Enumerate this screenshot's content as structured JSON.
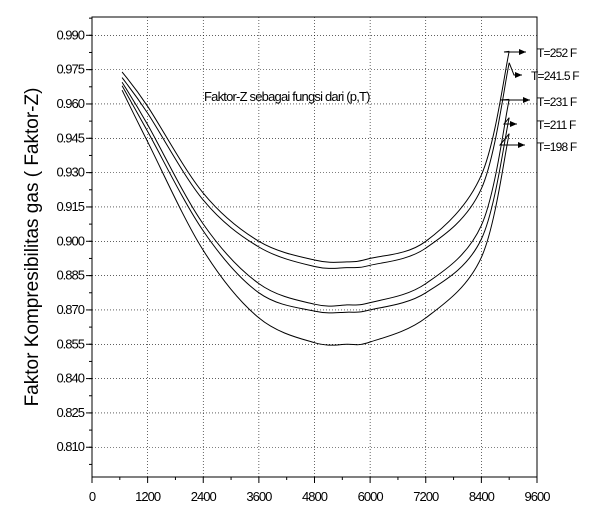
{
  "chart_data": {
    "type": "line",
    "title": "",
    "annotation": "Faktor-Z sebagai fungsi dari (p,T)",
    "xlabel": "",
    "ylabel": "Faktor Kompresibilitas gas ( Faktor-Z)",
    "xlim": [
      0,
      9600
    ],
    "ylim": [
      0.797,
      0.998
    ],
    "x_ticks": [
      0,
      1200,
      2400,
      3600,
      4800,
      6000,
      7200,
      8400,
      9600
    ],
    "x_tick_labels": [
      "0",
      "1200",
      "2400",
      "3600",
      "4800",
      "6000",
      "7200",
      "8400",
      "9600"
    ],
    "y_ticks": [
      0.81,
      0.825,
      0.84,
      0.855,
      0.87,
      0.885,
      0.9,
      0.915,
      0.93,
      0.945,
      0.96,
      0.975,
      0.99
    ],
    "y_tick_labels": [
      "0.810",
      "0.825",
      "0.840",
      "0.855",
      "0.870",
      "0.885",
      "0.900",
      "0.915",
      "0.930",
      "0.945",
      "0.960",
      "0.975",
      "0.990"
    ],
    "grid": true,
    "series": [
      {
        "name": "T=252 F",
        "x": [
          650,
          1200,
          2400,
          3600,
          4800,
          5500,
          6000,
          7200,
          8400,
          9000
        ],
        "y": [
          0.974,
          0.959,
          0.921,
          0.9,
          0.8918,
          0.891,
          0.8925,
          0.9,
          0.929,
          0.983
        ]
      },
      {
        "name": "T=241.5 F",
        "x": [
          650,
          1200,
          2400,
          3600,
          4800,
          5500,
          6000,
          7200,
          8400,
          9000
        ],
        "y": [
          0.9715,
          0.956,
          0.918,
          0.8975,
          0.889,
          0.8885,
          0.8895,
          0.897,
          0.923,
          0.978
        ]
      },
      {
        "name": "T=231 F",
        "x": [
          650,
          1200,
          2400,
          3600,
          4800,
          5500,
          6000,
          7200,
          8400,
          9000
        ],
        "y": [
          0.9695,
          0.951,
          0.9075,
          0.8815,
          0.8725,
          0.8722,
          0.8732,
          0.8815,
          0.907,
          0.962
        ]
      },
      {
        "name": "T=211 F",
        "x": [
          650,
          1200,
          2400,
          3600,
          4800,
          5500,
          6000,
          7200,
          8400,
          9000
        ],
        "y": [
          0.968,
          0.948,
          0.9045,
          0.8775,
          0.8695,
          0.869,
          0.87,
          0.8775,
          0.901,
          0.954
        ]
      },
      {
        "name": "T=198 F",
        "x": [
          650,
          1200,
          2400,
          3600,
          4800,
          5500,
          6000,
          7200,
          8400,
          9000
        ],
        "y": [
          0.966,
          0.9435,
          0.896,
          0.8665,
          0.8557,
          0.855,
          0.856,
          0.8665,
          0.893,
          0.947
        ]
      }
    ]
  }
}
